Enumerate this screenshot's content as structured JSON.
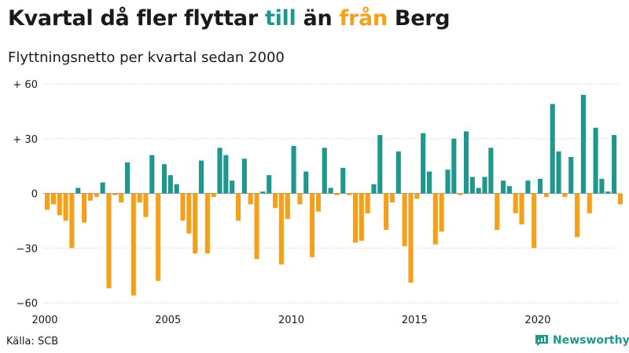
{
  "header": {
    "title_part1": "Kvartal då fler flyttar ",
    "title_till": "till",
    "title_part2": " än ",
    "title_fran": "från",
    "title_part3": " Berg",
    "subtitle": "Flyttningsnetto per kvartal sedan 2000"
  },
  "footer": {
    "source": "Källa: SCB",
    "brand": "Newsworthy"
  },
  "colors": {
    "positive": "#1f978c",
    "negative": "#f5a01a",
    "grid": "#d9d9d9",
    "text": "#1a1a1a"
  },
  "chart_data": {
    "type": "bar",
    "title": "Kvartal då fler flyttar till än från Berg",
    "subtitle": "Flyttningsnetto per kvartal sedan 2000",
    "xlabel": "",
    "ylabel": "",
    "ylim": [
      -60,
      60
    ],
    "xlim": [
      2000,
      2023.75
    ],
    "yticks": [
      {
        "value": 60,
        "label": "+ 60"
      },
      {
        "value": 30,
        "label": "+ 30"
      },
      {
        "value": 0,
        "label": "0"
      },
      {
        "value": -30,
        "label": "−30"
      },
      {
        "value": -60,
        "label": "−60"
      }
    ],
    "xticks": [
      "2000",
      "2005",
      "2010",
      "2015",
      "2020"
    ],
    "grid": true,
    "start_year": 2000,
    "start_quarter": 1,
    "values": [
      -9,
      -6,
      -12,
      -15,
      -30,
      3,
      -16,
      -4,
      -2,
      6,
      -52,
      -1,
      -5,
      17,
      -56,
      -5,
      -13,
      21,
      -48,
      16,
      10,
      5,
      -15,
      -22,
      -33,
      18,
      -33,
      -2,
      25,
      21,
      7,
      -15,
      19,
      -6,
      -36,
      1,
      10,
      -8,
      -39,
      -14,
      26,
      -6,
      12,
      -35,
      -10,
      25,
      3,
      -1,
      14,
      -1,
      -27,
      -26,
      -11,
      5,
      32,
      -20,
      -5,
      23,
      -29,
      -49,
      -3,
      33,
      12,
      -28,
      -21,
      13,
      30,
      -1,
      34,
      9,
      3,
      9,
      25,
      -20,
      7,
      4,
      -11,
      -17,
      7,
      -30,
      8,
      -2,
      49,
      23,
      -2,
      20,
      -24,
      54,
      -11,
      36,
      8,
      1,
      32,
      -6
    ]
  }
}
